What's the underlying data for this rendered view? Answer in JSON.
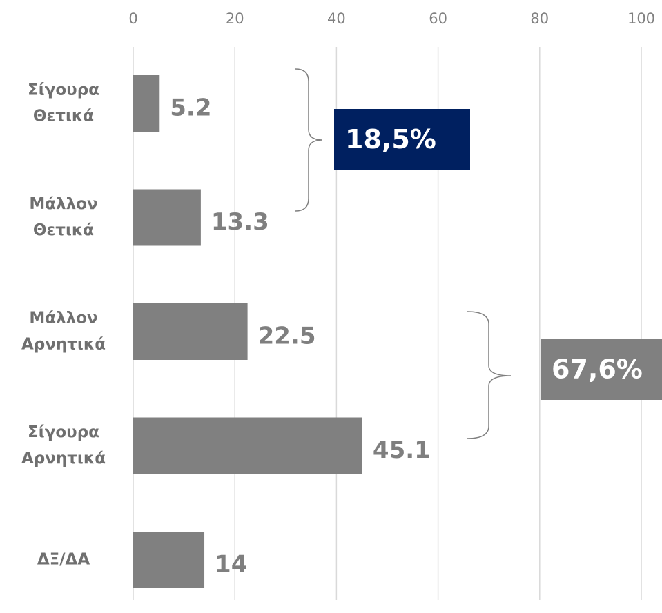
{
  "chart_data": {
    "type": "bar",
    "orientation": "horizontal",
    "categories": [
      [
        "Σίγουρα",
        "Θετικά"
      ],
      [
        "Μάλλον",
        "Θετικά"
      ],
      [
        "Μάλλον",
        "Αρνητικά"
      ],
      [
        "Σίγουρα",
        "Αρνητικά"
      ],
      [
        "ΔΞ/ΔΑ"
      ]
    ],
    "values": [
      5.2,
      13.3,
      22.5,
      45.1,
      14
    ],
    "color": "#808080",
    "xlim": [
      0,
      100
    ],
    "xticks": [
      0,
      20,
      40,
      60,
      80,
      100
    ],
    "grid": true,
    "annotations": [
      {
        "text": "18,5%",
        "color": "#002060"
      },
      {
        "text": "67,6%",
        "color": "#808080"
      }
    ]
  }
}
